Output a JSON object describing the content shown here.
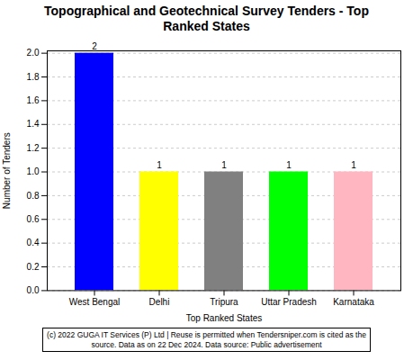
{
  "chart_data": {
    "type": "bar",
    "title": "Topographical and Geotechnical Survey Tenders - Top\nRanked States",
    "categories": [
      "West Bengal",
      "Delhi",
      "Tripura",
      "Uttar Pradesh",
      "Karnataka"
    ],
    "values": [
      2,
      1,
      1,
      1,
      1
    ],
    "colors": [
      "#0000FF",
      "#FFFF00",
      "#808080",
      "#00FF00",
      "#FFB6C1"
    ],
    "xlabel": "Top Ranked States",
    "ylabel": "Number of Tenders",
    "ylim": [
      0,
      2.02
    ],
    "yticks": [
      {
        "value": 0,
        "label": "0.0"
      },
      0.2,
      0.4,
      0.6,
      0.8,
      {
        "value": 1,
        "label": "1.0"
      },
      1.2,
      1.4,
      1.6,
      1.8,
      {
        "value": 2,
        "label": "2.0"
      }
    ],
    "grid": true,
    "data_labels": true,
    "caption": "(c) 2022 GUGA IT Services (P) Ltd | Reuse is permitted when Tendersniper.com is cited as the\nsource. Data as on 22 Dec 2024. Data source: Public advertisement"
  }
}
